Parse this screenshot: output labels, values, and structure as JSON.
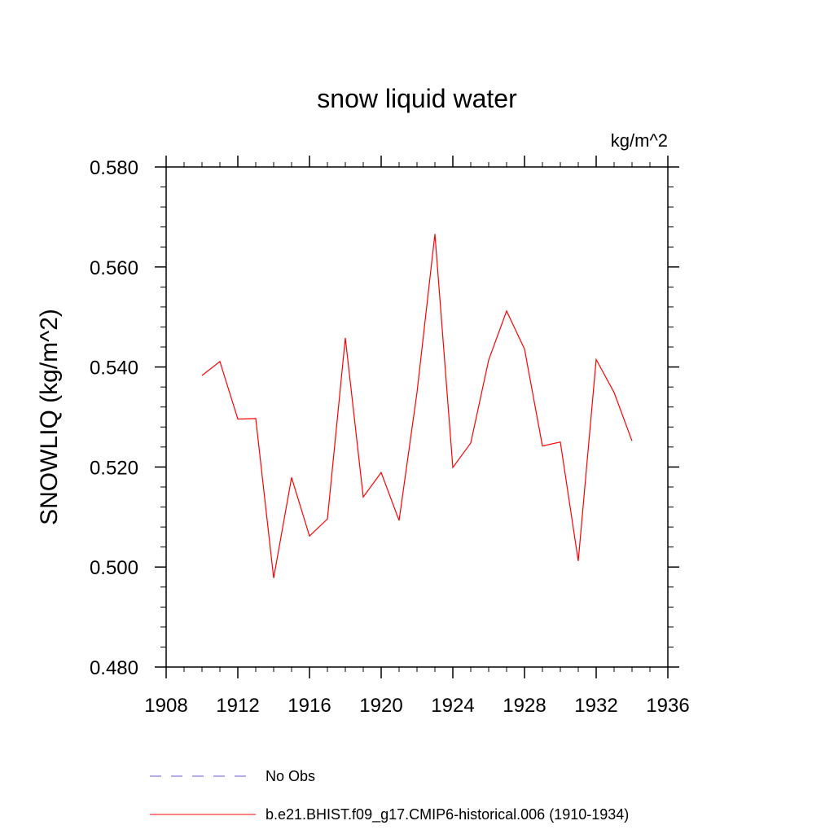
{
  "chart_data": {
    "type": "line",
    "title": "snow liquid water",
    "units_label": "kg/m^2",
    "ylabel": "SNOWLIQ  (kg/m^2)",
    "xlabel": "",
    "xlim": [
      1908,
      1936
    ],
    "ylim": [
      0.48,
      0.58
    ],
    "x_ticks": [
      1908,
      1912,
      1916,
      1920,
      1924,
      1928,
      1932,
      1936
    ],
    "x_tick_labels": [
      "1908",
      "1912",
      "1916",
      "1920",
      "1924",
      "1928",
      "1932",
      "1936"
    ],
    "y_ticks": [
      0.48,
      0.5,
      0.52,
      0.54,
      0.56,
      0.58
    ],
    "y_tick_labels": [
      "0.480",
      "0.500",
      "0.520",
      "0.540",
      "0.560",
      "0.580"
    ],
    "grid": false,
    "legend_position": "bottom",
    "series": [
      {
        "name": "b.e21.BHIST.f09_g17.CMIP6-historical.006 (1910-1934)",
        "color": "#ff0000",
        "style": "solid",
        "x": [
          1910,
          1911,
          1912,
          1913,
          1914,
          1915,
          1916,
          1917,
          1918,
          1919,
          1920,
          1921,
          1922,
          1923,
          1924,
          1925,
          1926,
          1927,
          1928,
          1929,
          1930,
          1931,
          1932,
          1933,
          1934
        ],
        "values": [
          0.5383,
          0.5411,
          0.5296,
          0.5297,
          0.4978,
          0.5179,
          0.5062,
          0.5096,
          0.5458,
          0.514,
          0.5189,
          0.5093,
          0.5349,
          0.5666,
          0.5199,
          0.5248,
          0.5414,
          0.5512,
          0.5436,
          0.5242,
          0.525,
          0.5012,
          0.5415,
          0.5349,
          0.5252
        ]
      }
    ],
    "legend": [
      {
        "label": "No Obs",
        "color": "#6a5acd",
        "style": "dashed"
      },
      {
        "label": "b.e21.BHIST.f09_g17.CMIP6-historical.006 (1910-1934)",
        "color": "#ff0000",
        "style": "solid"
      }
    ]
  }
}
